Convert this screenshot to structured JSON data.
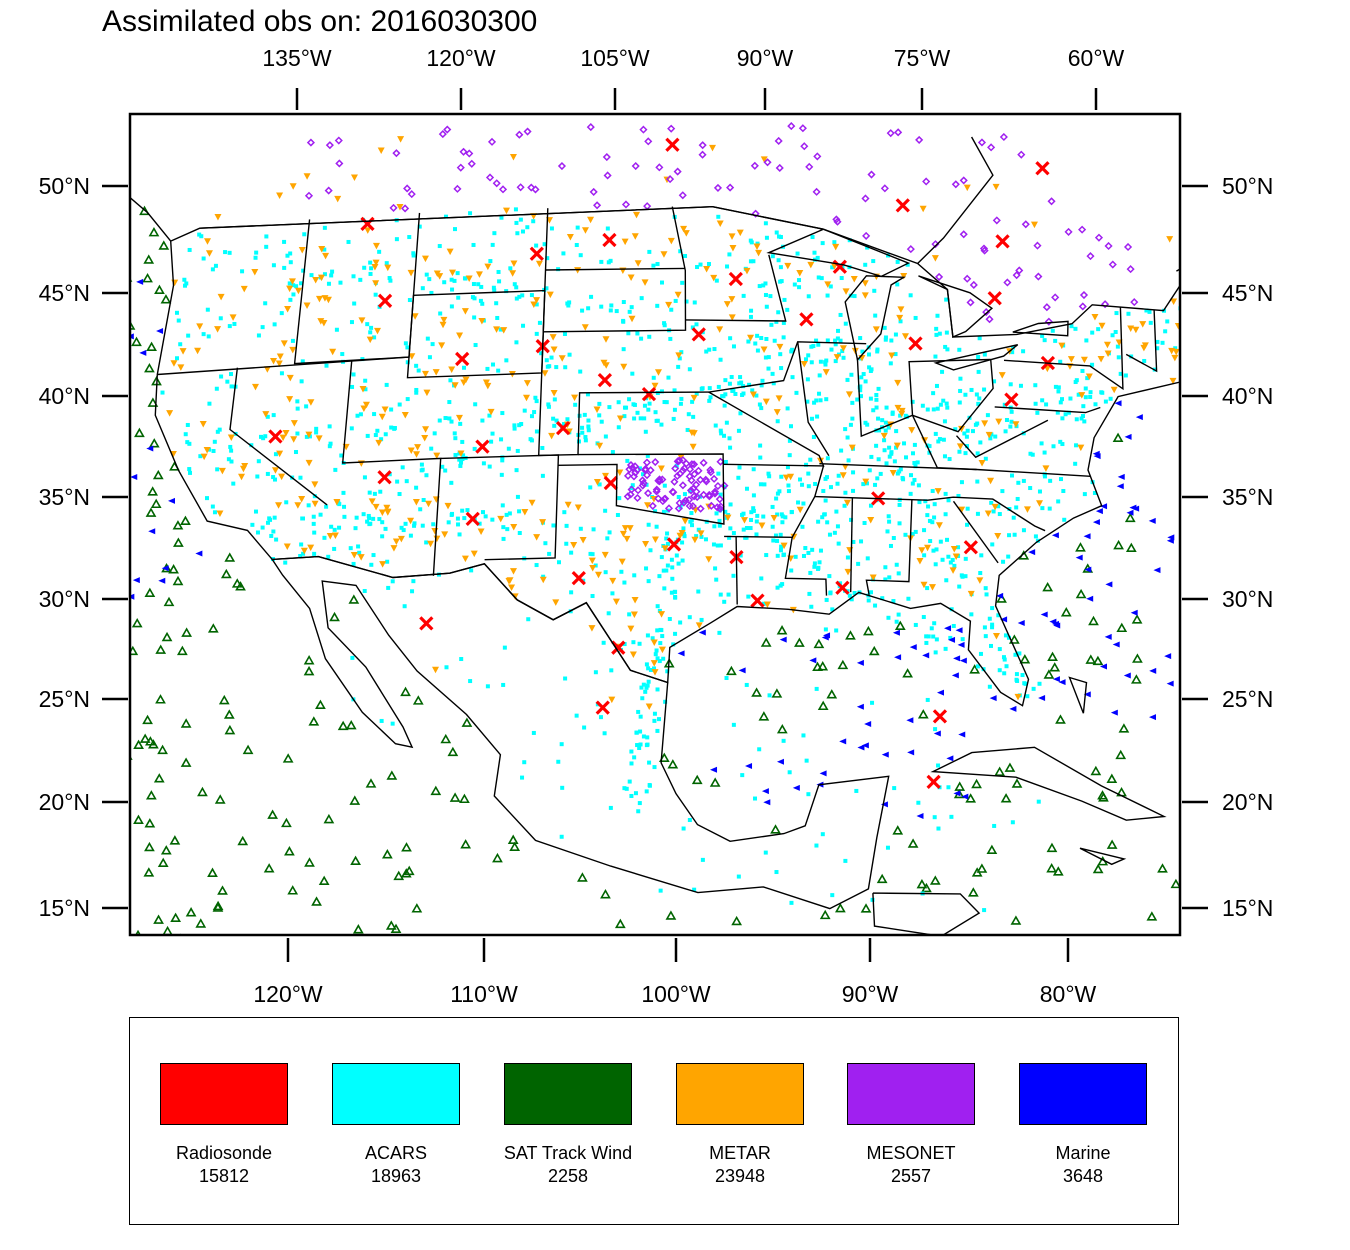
{
  "title": "Assimilated obs on: 2016030300",
  "colors": {
    "radiosonde": "#ff0000",
    "acars": "#00ffff",
    "sat_track_wind": "#006400",
    "metar": "#ffa500",
    "mesonet": "#a020f0",
    "marine": "#0000ff",
    "coast": "#000000"
  },
  "axes": {
    "top_lon_labels": [
      "135°W",
      "120°W",
      "105°W",
      "90°W",
      "75°W",
      "60°W"
    ],
    "bottom_lon_labels": [
      "120°W",
      "110°W",
      "100°W",
      "90°W",
      "80°W"
    ],
    "left_lat_labels": [
      "50°N",
      "45°N",
      "40°N",
      "35°N",
      "30°N",
      "25°N",
      "20°N",
      "15°N"
    ],
    "right_lat_labels": [
      "50°N",
      "45°N",
      "40°N",
      "35°N",
      "30°N",
      "25°N",
      "20°N",
      "15°N"
    ]
  },
  "legend": [
    {
      "name": "Radiosonde",
      "count": "15812",
      "color": "#ff0000"
    },
    {
      "name": "ACARS",
      "count": "18963",
      "color": "#00ffff"
    },
    {
      "name": "SAT Track Wind",
      "count": "2258",
      "color": "#006400"
    },
    {
      "name": "METAR",
      "count": "23948",
      "color": "#ffa500"
    },
    {
      "name": "MESONET",
      "count": "2557",
      "color": "#a020f0"
    },
    {
      "name": "Marine",
      "count": "3648",
      "color": "#0000ff"
    }
  ],
  "chart_data": {
    "type": "scatter",
    "title": "Assimilated obs on: 2016030300",
    "lon_range": [
      -128,
      -74
    ],
    "lat_range": [
      14,
      53
    ],
    "series": [
      {
        "name": "Radiosonde",
        "count": 15812
      },
      {
        "name": "ACARS",
        "count": 18963
      },
      {
        "name": "SAT Track Wind",
        "count": 2258
      },
      {
        "name": "METAR",
        "count": 23948
      },
      {
        "name": "MESONET",
        "count": 2557
      },
      {
        "name": "Marine",
        "count": 3648
      }
    ],
    "radiosonde_sites": [
      [
        -113.8,
        48.6
      ],
      [
        -112.5,
        44.8
      ],
      [
        -97.2,
        52.0
      ],
      [
        -76.7,
        51.5
      ],
      [
        -84.6,
        49.3
      ],
      [
        -100.6,
        47.4
      ],
      [
        -93.8,
        45.5
      ],
      [
        -88.2,
        46.2
      ],
      [
        -79.3,
        47.8
      ],
      [
        -80.0,
        45.0
      ],
      [
        -104.0,
        42.3
      ],
      [
        -95.8,
        42.8
      ],
      [
        -84.4,
        42.6
      ],
      [
        -77.5,
        42.0
      ],
      [
        -108.2,
        41.8
      ],
      [
        -100.7,
        40.6
      ],
      [
        -98.4,
        39.9
      ],
      [
        -79.6,
        40.1
      ],
      [
        -117.6,
        38.5
      ],
      [
        -102.8,
        38.3
      ],
      [
        -106.9,
        37.5
      ],
      [
        -111.8,
        36.2
      ],
      [
        -100.3,
        35.6
      ],
      [
        -86.8,
        35.0
      ],
      [
        -107.2,
        34.0
      ],
      [
        -97.1,
        32.6
      ],
      [
        -94.0,
        32.0
      ],
      [
        -82.3,
        32.8
      ],
      [
        -101.8,
        31.0
      ],
      [
        -88.8,
        30.6
      ],
      [
        -93.0,
        29.9
      ],
      [
        -109.2,
        29.0
      ],
      [
        -99.8,
        27.6
      ],
      [
        -100.5,
        24.7
      ],
      [
        -84.4,
        24.5
      ],
      [
        -84.9,
        21.3
      ],
      [
        -104.5,
        46.8
      ],
      [
        -90.1,
        43.6
      ]
    ]
  }
}
